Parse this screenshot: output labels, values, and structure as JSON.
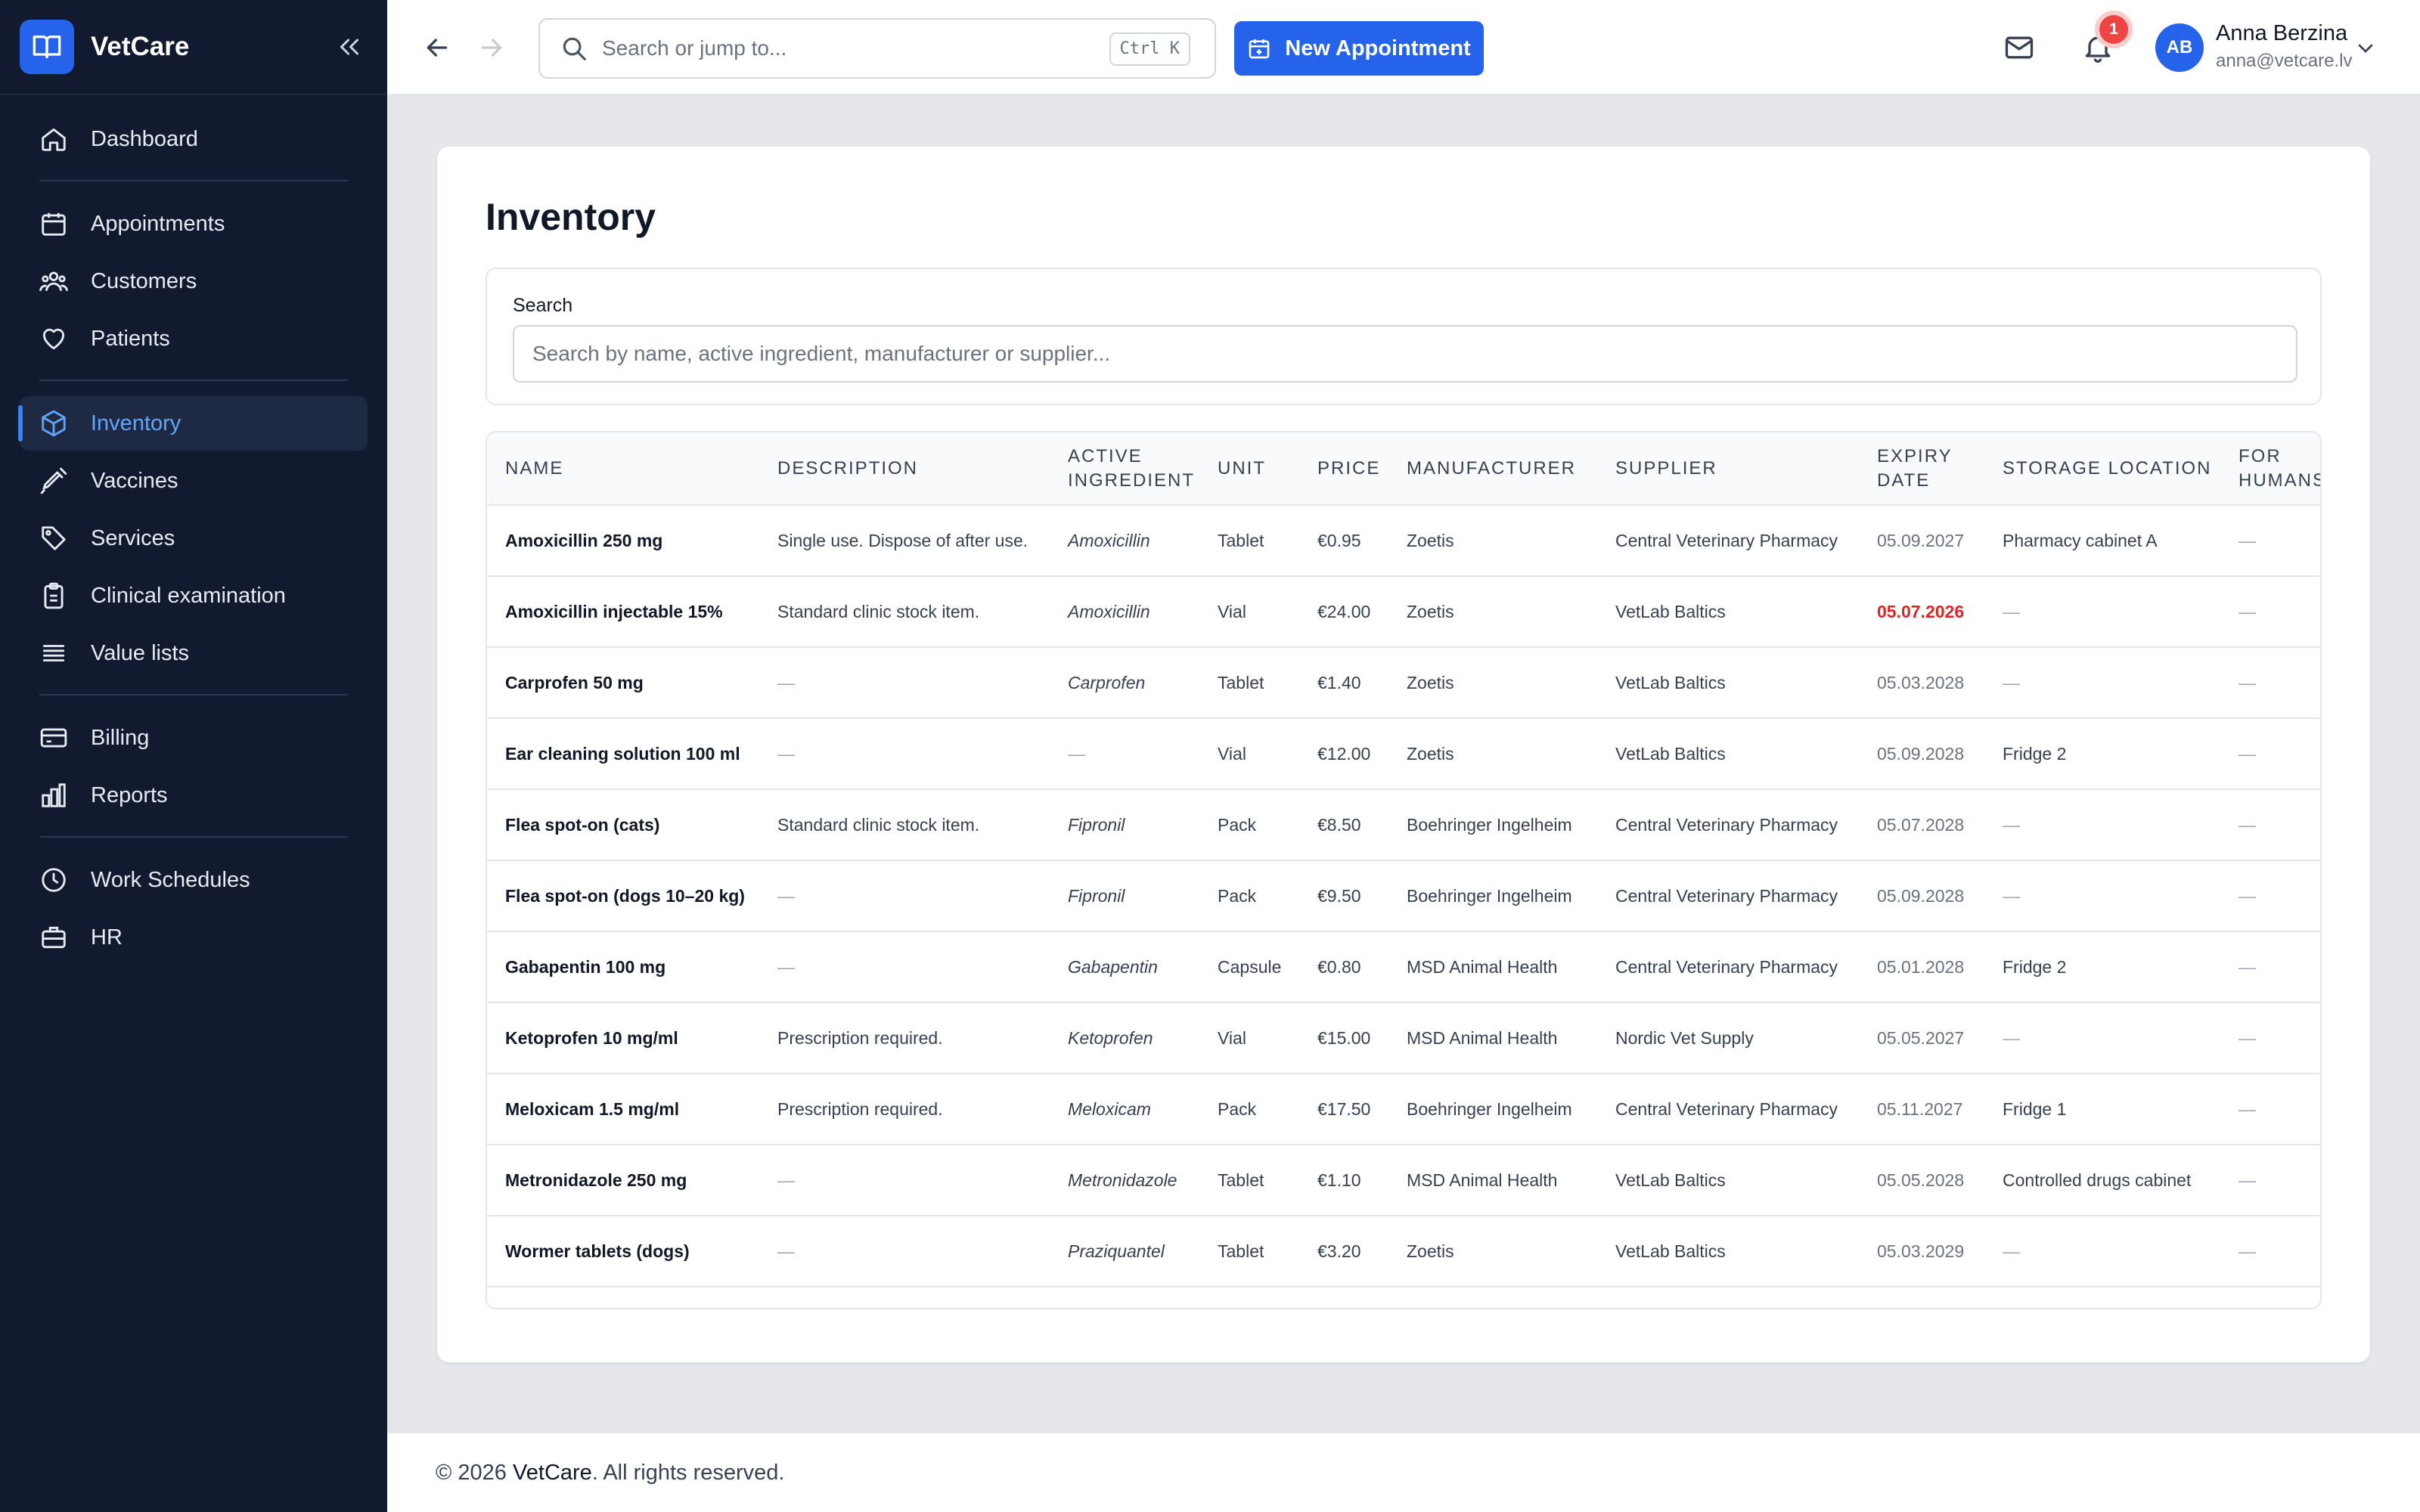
{
  "app": {
    "name": "VetCare"
  },
  "sidebar": {
    "items": [
      {
        "label": "Dashboard",
        "icon": "home-icon"
      },
      {
        "label": "Appointments",
        "icon": "calendar-icon"
      },
      {
        "label": "Customers",
        "icon": "users-icon"
      },
      {
        "label": "Patients",
        "icon": "heart-icon"
      },
      {
        "label": "Inventory",
        "icon": "package-icon",
        "active": true
      },
      {
        "label": "Vaccines",
        "icon": "syringe-icon"
      },
      {
        "label": "Services",
        "icon": "tag-icon"
      },
      {
        "label": "Clinical examination",
        "icon": "clipboard-icon"
      },
      {
        "label": "Value lists",
        "icon": "list-icon"
      },
      {
        "label": "Billing",
        "icon": "credit-card-icon"
      },
      {
        "label": "Reports",
        "icon": "bar-chart-icon"
      },
      {
        "label": "Work Schedules",
        "icon": "clock-icon"
      },
      {
        "label": "HR",
        "icon": "briefcase-icon"
      }
    ]
  },
  "topbar": {
    "search_placeholder": "Search or jump to...",
    "shortcut": "Ctrl K",
    "new_appointment": "New Appointment",
    "notification_count": "1",
    "user": {
      "initials": "AB",
      "name": "Anna Berzina",
      "email": "anna@vetcare.lv"
    }
  },
  "page": {
    "title": "Inventory",
    "search_label": "Search",
    "search_placeholder": "Search by name, active ingredient, manufacturer or supplier..."
  },
  "table": {
    "columns": [
      "NAME",
      "DESCRIPTION",
      "ACTIVE INGREDIENT",
      "UNIT",
      "PRICE",
      "MANUFACTURER",
      "SUPPLIER",
      "EXPIRY DATE",
      "STORAGE LOCATION",
      "FOR HUMANS"
    ],
    "rows": [
      {
        "name": "Amoxicillin 250 mg",
        "description": "Single use. Dispose of after use.",
        "ingredient": "Amoxicillin",
        "unit": "Tablet",
        "price": "€0.95",
        "manufacturer": "Zoetis",
        "supplier": "Central Veterinary Pharmacy",
        "expiry": "05.09.2027",
        "storage": "Pharmacy cabinet A",
        "humans": "—"
      },
      {
        "name": "Amoxicillin injectable 15%",
        "description": "Standard clinic stock item.",
        "ingredient": "Amoxicillin",
        "unit": "Vial",
        "price": "€24.00",
        "manufacturer": "Zoetis",
        "supplier": "VetLab Baltics",
        "expiry": "05.07.2026",
        "expiry_alert": true,
        "storage": "—",
        "humans": "—"
      },
      {
        "name": "Carprofen 50 mg",
        "description": "—",
        "ingredient": "Carprofen",
        "unit": "Tablet",
        "price": "€1.40",
        "manufacturer": "Zoetis",
        "supplier": "VetLab Baltics",
        "expiry": "05.03.2028",
        "storage": "—",
        "humans": "—"
      },
      {
        "name": "Ear cleaning solution 100 ml",
        "description": "—",
        "ingredient": "—",
        "unit": "Vial",
        "price": "€12.00",
        "manufacturer": "Zoetis",
        "supplier": "VetLab Baltics",
        "expiry": "05.09.2028",
        "storage": "Fridge 2",
        "humans": "—"
      },
      {
        "name": "Flea spot-on (cats)",
        "description": "Standard clinic stock item.",
        "ingredient": "Fipronil",
        "unit": "Pack",
        "price": "€8.50",
        "manufacturer": "Boehringer Ingelheim",
        "supplier": "Central Veterinary Pharmacy",
        "expiry": "05.07.2028",
        "storage": "—",
        "humans": "—"
      },
      {
        "name": "Flea spot-on (dogs 10–20 kg)",
        "description": "—",
        "ingredient": "Fipronil",
        "unit": "Pack",
        "price": "€9.50",
        "manufacturer": "Boehringer Ingelheim",
        "supplier": "Central Veterinary Pharmacy",
        "expiry": "05.09.2028",
        "storage": "—",
        "humans": "—"
      },
      {
        "name": "Gabapentin 100 mg",
        "description": "—",
        "ingredient": "Gabapentin",
        "unit": "Capsule",
        "price": "€0.80",
        "manufacturer": "MSD Animal Health",
        "supplier": "Central Veterinary Pharmacy",
        "expiry": "05.01.2028",
        "storage": "Fridge 2",
        "humans": "—"
      },
      {
        "name": "Ketoprofen 10 mg/ml",
        "description": "Prescription required.",
        "ingredient": "Ketoprofen",
        "unit": "Vial",
        "price": "€15.00",
        "manufacturer": "MSD Animal Health",
        "supplier": "Nordic Vet Supply",
        "expiry": "05.05.2027",
        "storage": "—",
        "humans": "—"
      },
      {
        "name": "Meloxicam 1.5 mg/ml",
        "description": "Prescription required.",
        "ingredient": "Meloxicam",
        "unit": "Pack",
        "price": "€17.50",
        "manufacturer": "Boehringer Ingelheim",
        "supplier": "Central Veterinary Pharmacy",
        "expiry": "05.11.2027",
        "storage": "Fridge 1",
        "humans": "—"
      },
      {
        "name": "Metronidazole 250 mg",
        "description": "—",
        "ingredient": "Metronidazole",
        "unit": "Tablet",
        "price": "€1.10",
        "manufacturer": "MSD Animal Health",
        "supplier": "VetLab Baltics",
        "expiry": "05.05.2028",
        "storage": "Controlled drugs cabinet",
        "humans": "—"
      },
      {
        "name": "Wormer tablets (dogs)",
        "description": "—",
        "ingredient": "Praziquantel",
        "unit": "Tablet",
        "price": "€3.20",
        "manufacturer": "Zoetis",
        "supplier": "VetLab Baltics",
        "expiry": "05.03.2029",
        "storage": "—",
        "humans": "—"
      }
    ]
  },
  "footer": {
    "prefix": "© 2026 ",
    "brand": "VetCare",
    "suffix": ". All rights reserved."
  },
  "colors": {
    "sidebar_bg": "#111a2e",
    "accent": "#2563eb",
    "alert": "#dc2626"
  }
}
